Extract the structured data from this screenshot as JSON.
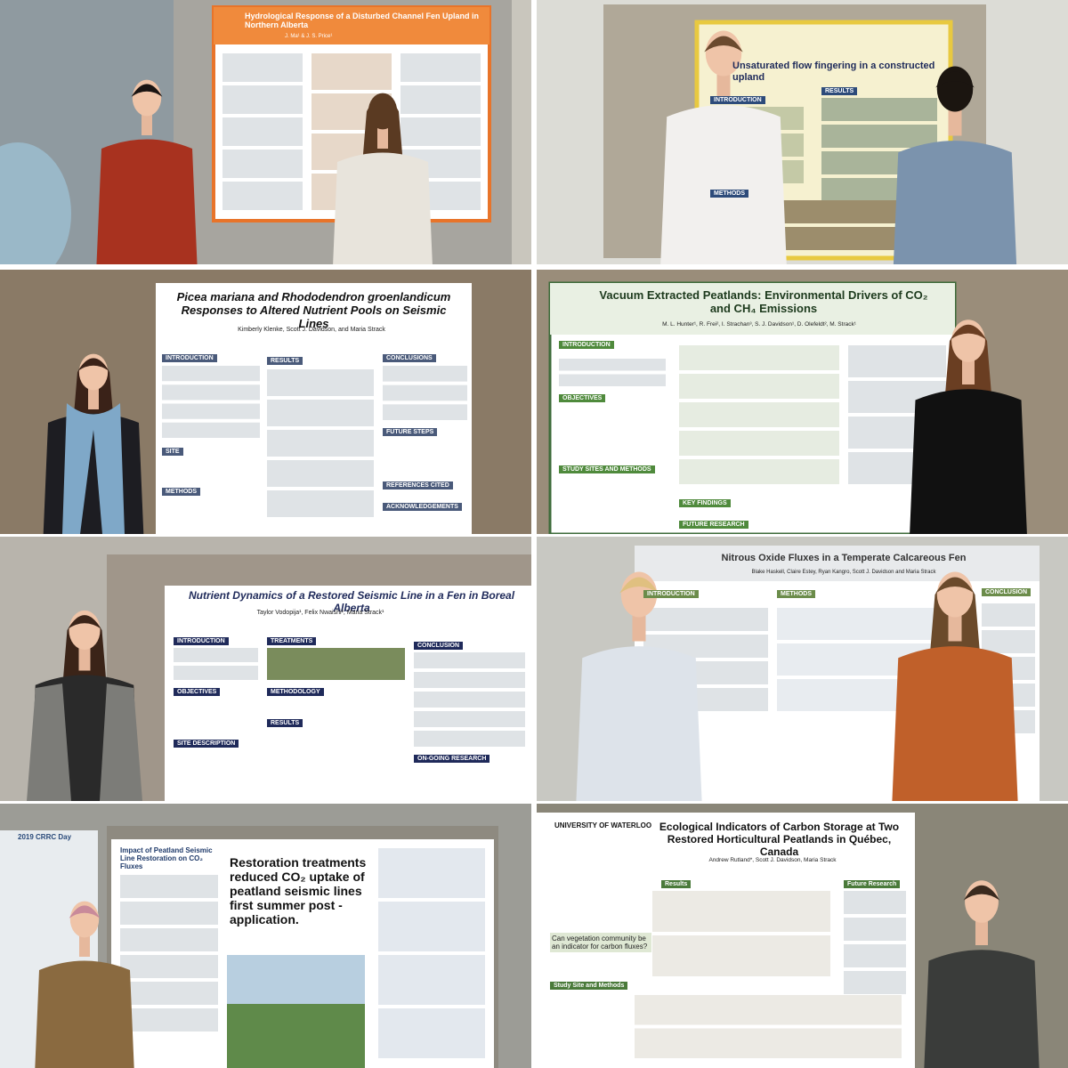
{
  "panels": [
    {
      "poster_title": "Hydrological Response of a Disturbed Channel Fen Upland in Northern Alberta",
      "authors": "J. Ma¹ & J. S. Price¹"
    },
    {
      "poster_title": "Unsaturated flow fingering in a constructed upland",
      "sections": [
        "INTRODUCTION",
        "RESULTS",
        "METHODS"
      ]
    },
    {
      "poster_title": "Picea mariana and Rhododendron groenlandicum Responses to Altered Nutrient Pools on Seismic Lines",
      "authors": "Kimberly Klenke, Scott J. Davidson, and Maria Strack",
      "sections": [
        "INTRODUCTION",
        "RESULTS",
        "CONCLUSIONS",
        "SITE",
        "METHODS",
        "FUTURE STEPS",
        "REFERENCES CITED",
        "ACKNOWLEDGEMENTS"
      ]
    },
    {
      "poster_title": "Vacuum Extracted Peatlands: Environmental Drivers of CO₂ and CH₄ Emissions",
      "authors": "M. L. Hunter¹, R. Frei², I. Strachan³, S. J. Davidson¹, D. Olefeldt², M. Strack¹",
      "sections": [
        "INTRODUCTION",
        "OBJECTIVES",
        "STUDY SITES AND METHODS",
        "KEY FINDINGS",
        "FUTURE RESEARCH"
      ]
    },
    {
      "poster_title": "Nutrient Dynamics of a Restored Seismic Line in a Fen in Boreal Alberta",
      "authors": "Taylor Vodopija¹, Felix Nwaishi², Maria Strack¹",
      "sections": [
        "INTRODUCTION",
        "TREATMENTS",
        "CONCLUSION",
        "OBJECTIVES",
        "METHODOLOGY",
        "RESULTS",
        "SITE DESCRIPTION",
        "ON-GOING RESEARCH"
      ]
    },
    {
      "poster_title": "Nitrous Oxide Fluxes in a Temperate Calcareous Fen",
      "authors": "Blake Haskell, Claire Estey, Ryan Kangro, Scott J. Davidson and Maria Strack",
      "sections": [
        "INTRODUCTION",
        "METHODS",
        "CONCLUSION"
      ]
    },
    {
      "poster_title": "Impact of Peatland Seismic Line Restoration on CO₂ Fluxes",
      "headline": "Restoration treatments reduced CO₂ uptake of peatland seismic lines first summer post - application.",
      "side_poster": "2019 CRRC Day"
    },
    {
      "university": "UNIVERSITY OF WATERLOO",
      "poster_title": "Ecological Indicators of Carbon Storage at Two Restored Horticultural Peatlands in Québec, Canada",
      "authors": "Andrew Rutland*, Scott J. Davidson, Maria Strack",
      "sections": [
        "Results",
        "Future Research",
        "Study Site and Methods"
      ],
      "question": "Can vegetation community be an indicator for carbon fluxes?"
    }
  ]
}
